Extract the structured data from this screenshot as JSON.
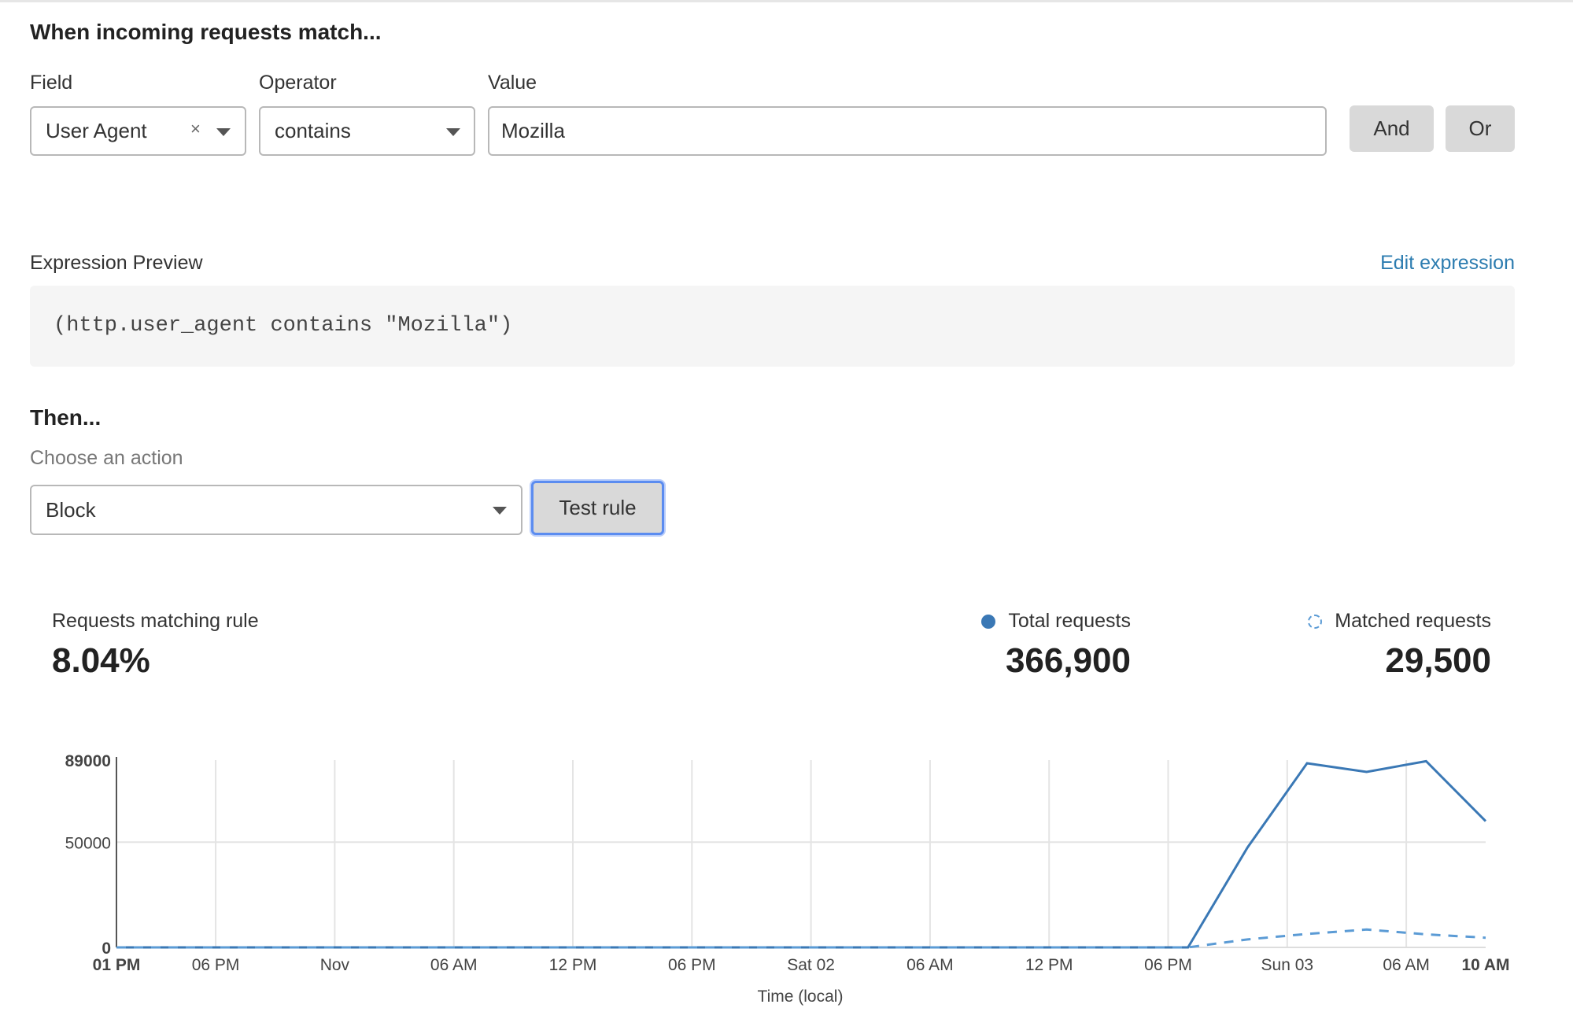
{
  "rule": {
    "heading": "When incoming requests match...",
    "field_label": "Field",
    "operator_label": "Operator",
    "value_label": "Value",
    "field_value": "User Agent",
    "clear_icon": "×",
    "operator_value": "contains",
    "value_input": "Mozilla",
    "and_label": "And",
    "or_label": "Or"
  },
  "expression": {
    "label": "Expression Preview",
    "edit_link": "Edit expression",
    "code": "(http.user_agent contains \"Mozilla\")"
  },
  "action": {
    "heading": "Then...",
    "label": "Choose an action",
    "selected": "Block",
    "test_label": "Test rule"
  },
  "stats": {
    "matching_label": "Requests matching rule",
    "matching_value": "8.04%",
    "total_label": "Total requests",
    "total_value": "366,900",
    "matched_label": "Matched requests",
    "matched_value": "29,500"
  },
  "colors": {
    "accent": "#3a78b5",
    "matched": "#5b9bd5",
    "link": "#2c7cb0"
  },
  "chart_data": {
    "type": "line",
    "xlabel": "Time (local)",
    "x_tick_labels": [
      "01 PM",
      "06 PM",
      "Nov",
      "06 AM",
      "12 PM",
      "06 PM",
      "Sat 02",
      "06 AM",
      "12 PM",
      "06 PM",
      "Sun 03",
      "06 AM",
      "10 AM"
    ],
    "x_tick_hours": [
      0,
      5,
      11,
      17,
      23,
      29,
      35,
      41,
      47,
      53,
      59,
      65,
      69
    ],
    "x_hours": [
      0,
      3,
      6,
      9,
      12,
      15,
      18,
      21,
      24,
      27,
      30,
      33,
      36,
      39,
      42,
      45,
      48,
      51,
      54,
      57,
      60,
      63,
      66,
      69
    ],
    "y_ticks": [
      0,
      50000,
      89000
    ],
    "ylim": [
      0,
      89000
    ],
    "grid": true,
    "series": [
      {
        "name": "Total requests",
        "style": "solid",
        "values": [
          0,
          0,
          0,
          0,
          0,
          0,
          0,
          0,
          0,
          0,
          0,
          0,
          0,
          0,
          0,
          0,
          0,
          0,
          0,
          47500,
          87500,
          83400,
          88500,
          60000
        ]
      },
      {
        "name": "Matched requests",
        "style": "dashed",
        "values": [
          0,
          0,
          0,
          0,
          0,
          0,
          0,
          0,
          0,
          0,
          0,
          0,
          0,
          0,
          0,
          0,
          0,
          0,
          0,
          3800,
          6400,
          8500,
          6200,
          4600
        ]
      }
    ]
  }
}
